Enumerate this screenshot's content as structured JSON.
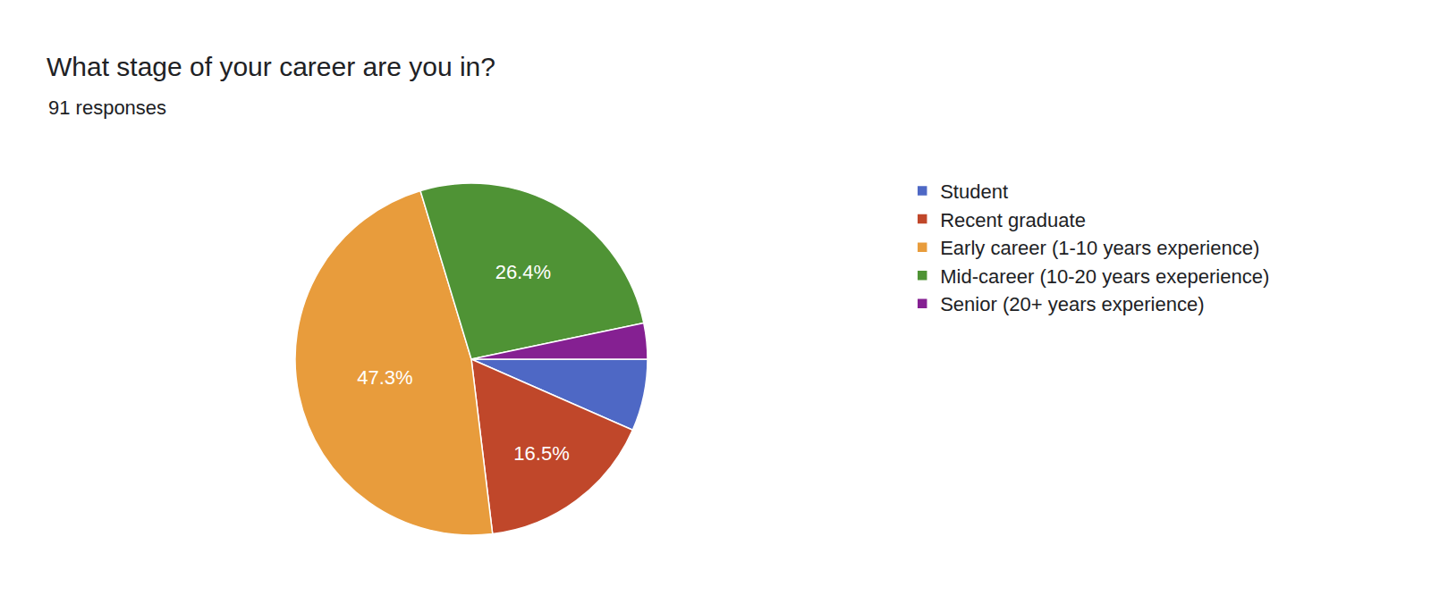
{
  "chart_data": {
    "type": "pie",
    "title": "What stage of your career are you in?",
    "subtitle": "91 responses",
    "categories": [
      "Student",
      "Recent graduate",
      "Early career (1-10 years experience)",
      "Mid-career (10-20 years exeperience)",
      "Senior (20+ years experience)"
    ],
    "values": [
      6.6,
      16.5,
      47.3,
      26.4,
      3.3
    ],
    "value_labels": [
      null,
      "16.5%",
      "47.3%",
      "26.4%",
      null
    ],
    "colors": [
      "#4e68c5",
      "#c0472a",
      "#e89c3c",
      "#4f9335",
      "#852092"
    ],
    "data_labels": true,
    "legend": "right"
  }
}
